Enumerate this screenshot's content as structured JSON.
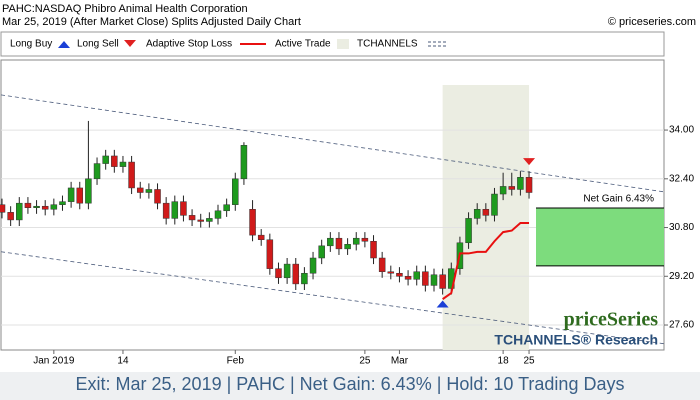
{
  "chart_data": {
    "type": "candlestick",
    "title": "PAHC:NASDAQ Phibro Animal Health Corporation",
    "subtitle": "Mar 25, 2019 (After Market Close)  Splits Adjusted Daily Chart",
    "source": "© priceseries.com",
    "watermark": "priceSeries",
    "watermark_sub": "TCHANNELS® Research",
    "footer": "Exit: Mar 25, 2019 | PAHC | Net Gain: 6.43% | Hold: 10 Trading Days",
    "categories": [
      null,
      null,
      null,
      null,
      null,
      null,
      "Jan 2019",
      null,
      null,
      null,
      null,
      null,
      null,
      null,
      "14",
      null,
      null,
      null,
      null,
      null,
      null,
      null,
      null,
      null,
      null,
      null,
      null,
      "Feb",
      null,
      null,
      null,
      null,
      null,
      null,
      null,
      null,
      null,
      null,
      null,
      null,
      null,
      null,
      "25",
      null,
      null,
      null,
      "Mar",
      null,
      null,
      null,
      null,
      null,
      null,
      null,
      null,
      null,
      null,
      null,
      "18",
      null,
      null,
      "25"
    ],
    "open": [
      31.55,
      31.3,
      31.05,
      31.6,
      31.45,
      31.5,
      31.4,
      31.55,
      31.65,
      32.1,
      31.6,
      32.4,
      32.9,
      33.15,
      32.8,
      32.95,
      32.1,
      31.95,
      32.05,
      31.6,
      31.1,
      31.65,
      31.2,
      31.05,
      31.0,
      31.1,
      31.35,
      31.55,
      32.4,
      31.4,
      30.55,
      30.4,
      29.45,
      29.15,
      29.6,
      28.95,
      29.3,
      29.8,
      30.2,
      30.45,
      30.1,
      30.25,
      30.45,
      30.35,
      29.8,
      29.35,
      29.3,
      29.2,
      29.1,
      29.35,
      28.9,
      29.25,
      28.8,
      29.45,
      30.3,
      31.1,
      31.4,
      31.2,
      31.9,
      32.15,
      32.05,
      32.45
    ],
    "high": [
      31.75,
      31.5,
      31.8,
      31.8,
      31.7,
      31.7,
      31.75,
      31.85,
      32.3,
      32.3,
      34.3,
      33.1,
      33.35,
      33.35,
      33.15,
      33.15,
      32.3,
      32.25,
      32.25,
      31.8,
      31.85,
      31.85,
      31.4,
      31.25,
      31.3,
      31.55,
      31.75,
      32.6,
      33.6,
      31.7,
      30.75,
      30.6,
      29.65,
      29.8,
      29.8,
      29.5,
      30.0,
      30.4,
      30.65,
      30.65,
      30.45,
      30.65,
      30.65,
      30.55,
      30.0,
      29.55,
      29.5,
      29.4,
      29.55,
      29.55,
      29.45,
      29.45,
      29.65,
      30.5,
      31.3,
      31.6,
      31.6,
      32.1,
      32.6,
      32.6,
      32.65,
      32.65
    ],
    "low": [
      31.1,
      30.85,
      30.85,
      31.25,
      31.25,
      31.2,
      31.2,
      31.35,
      31.45,
      31.4,
      31.4,
      32.2,
      32.7,
      32.6,
      32.6,
      31.9,
      31.75,
      31.75,
      31.4,
      30.9,
      30.9,
      31.0,
      30.85,
      30.8,
      30.8,
      30.9,
      31.15,
      31.35,
      32.2,
      30.35,
      30.2,
      29.25,
      28.95,
      28.95,
      28.75,
      28.75,
      29.1,
      29.6,
      30.0,
      29.9,
      29.9,
      30.05,
      30.15,
      29.6,
      29.15,
      29.1,
      29.0,
      28.9,
      28.9,
      28.7,
      28.7,
      28.6,
      28.6,
      29.25,
      30.1,
      30.9,
      31.0,
      31.0,
      31.7,
      31.85,
      31.85,
      31.75
    ],
    "close": [
      31.3,
      31.05,
      31.6,
      31.45,
      31.5,
      31.4,
      31.55,
      31.65,
      32.1,
      31.6,
      32.4,
      32.9,
      33.15,
      32.8,
      32.95,
      32.1,
      31.95,
      32.05,
      31.6,
      31.1,
      31.65,
      31.2,
      31.05,
      31.0,
      31.1,
      31.35,
      31.55,
      32.4,
      33.5,
      30.55,
      30.4,
      29.45,
      29.15,
      29.6,
      28.95,
      29.3,
      29.8,
      30.2,
      30.45,
      30.1,
      30.25,
      30.45,
      30.35,
      29.8,
      29.35,
      29.3,
      29.2,
      29.1,
      29.35,
      28.9,
      29.25,
      28.8,
      29.45,
      30.3,
      31.1,
      31.4,
      31.2,
      31.9,
      32.15,
      32.05,
      32.45,
      31.95
    ],
    "up_color": "#1e9a1e",
    "down_color": "#d01a1a",
    "stop_loss": {
      "name": "Adaptive Stop Loss",
      "color": "#e81010",
      "values": [
        null,
        null,
        null,
        null,
        null,
        null,
        null,
        null,
        null,
        null,
        null,
        null,
        null,
        null,
        null,
        null,
        null,
        null,
        null,
        null,
        null,
        null,
        null,
        null,
        null,
        null,
        null,
        null,
        null,
        null,
        null,
        null,
        null,
        null,
        null,
        null,
        null,
        null,
        null,
        null,
        null,
        null,
        null,
        null,
        null,
        null,
        null,
        null,
        null,
        null,
        null,
        28.45,
        28.65,
        29.95,
        29.95,
        30.0,
        30.0,
        30.35,
        30.65,
        30.7,
        30.95,
        30.95
      ]
    },
    "buy": {
      "name": "Long Buy",
      "color": "#1a3fd6"
    },
    "sell": {
      "name": "Long Sell",
      "color": "#e02020"
    },
    "trade": {
      "name": "Active Trade",
      "color": "#ebede2",
      "entry": 51,
      "exit": 61
    },
    "channel": {
      "name": "TCHANNELS",
      "color": "#4a5a7a",
      "upper": [
        35.15,
        32.62
      ],
      "lower": [
        30.0,
        27.6
      ]
    },
    "net_gain": {
      "label": "Net Gain 6.43%",
      "entry_price": 29.54,
      "exit_price": 31.44,
      "color": "#7ddc7d"
    },
    "ylim": [
      26.78,
      36.3
    ],
    "yticks": [
      {
        "value": 27.6,
        "label": "27.60"
      },
      {
        "value": 29.2,
        "label": "29.20"
      },
      {
        "value": 30.8,
        "label": "30.80"
      },
      {
        "value": 32.4,
        "label": "32.40"
      },
      {
        "value": 34,
        "label": "34.00"
      }
    ],
    "grid": true
  }
}
